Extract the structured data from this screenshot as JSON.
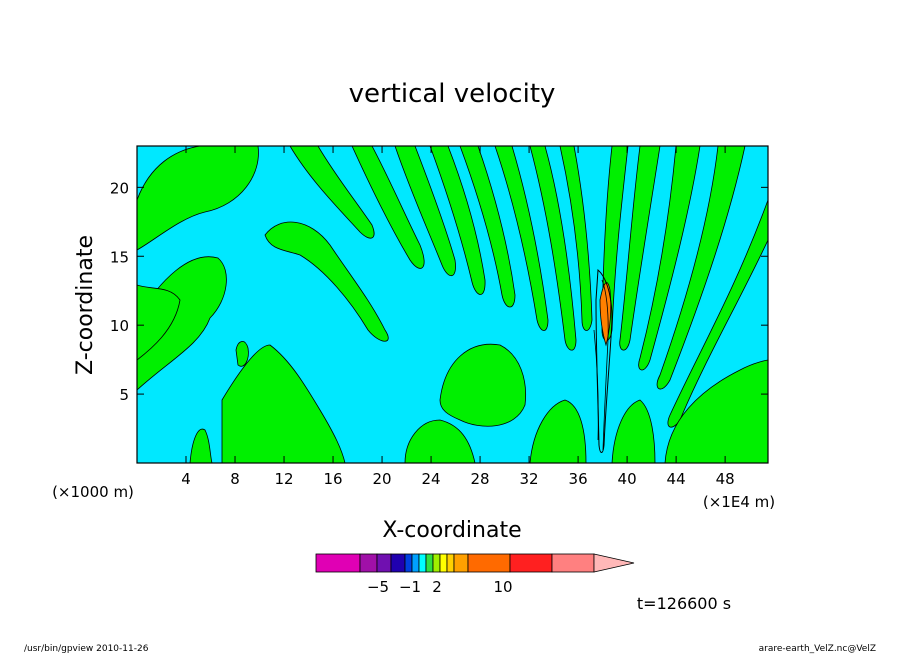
{
  "chart_data": {
    "type": "heatmap",
    "title": "vertical velocity",
    "xlabel": "X-coordinate",
    "ylabel": "Z-coordinate",
    "x_unit_left": "(×1000 m)",
    "x_unit_right": "(×1E4 m)",
    "xlim": [
      0,
      51.5
    ],
    "ylim": [
      0,
      23
    ],
    "x_ticks": [
      4,
      8,
      12,
      16,
      20,
      24,
      28,
      32,
      36,
      40,
      44,
      48
    ],
    "y_ticks": [
      5,
      10,
      15,
      20
    ],
    "colorbar": {
      "labels": [
        {
          "value": -5,
          "text": "−5"
        },
        {
          "value": -1,
          "text": "−1"
        },
        {
          "value": 2,
          "text": "2"
        },
        {
          "value": 10,
          "text": "10"
        }
      ],
      "levels": [
        {
          "color": "#e000b4"
        },
        {
          "color": "#a010a8"
        },
        {
          "color": "#7010b0"
        },
        {
          "color": "#2000b0"
        },
        {
          "color": "#0040e0"
        },
        {
          "color": "#00a0ff"
        },
        {
          "color": "#00ffff"
        },
        {
          "color": "#30e040"
        },
        {
          "color": "#a0f000"
        },
        {
          "color": "#ffff00"
        },
        {
          "color": "#ffd000"
        },
        {
          "color": "#ffa000"
        },
        {
          "color": "#ff6a00"
        },
        {
          "color": "#ff2020"
        },
        {
          "color": "#ff8080"
        },
        {
          "color": "#ffb8b8"
        }
      ]
    },
    "field_colors": {
      "background": "#00e8ff",
      "positive": "#00f000",
      "strong": "#ff8000"
    },
    "time_label": "t=126600 s"
  },
  "footer": {
    "left": "/usr/bin/gpview   2010-11-26",
    "right": "arare-earth_VelZ.nc@VelZ"
  }
}
